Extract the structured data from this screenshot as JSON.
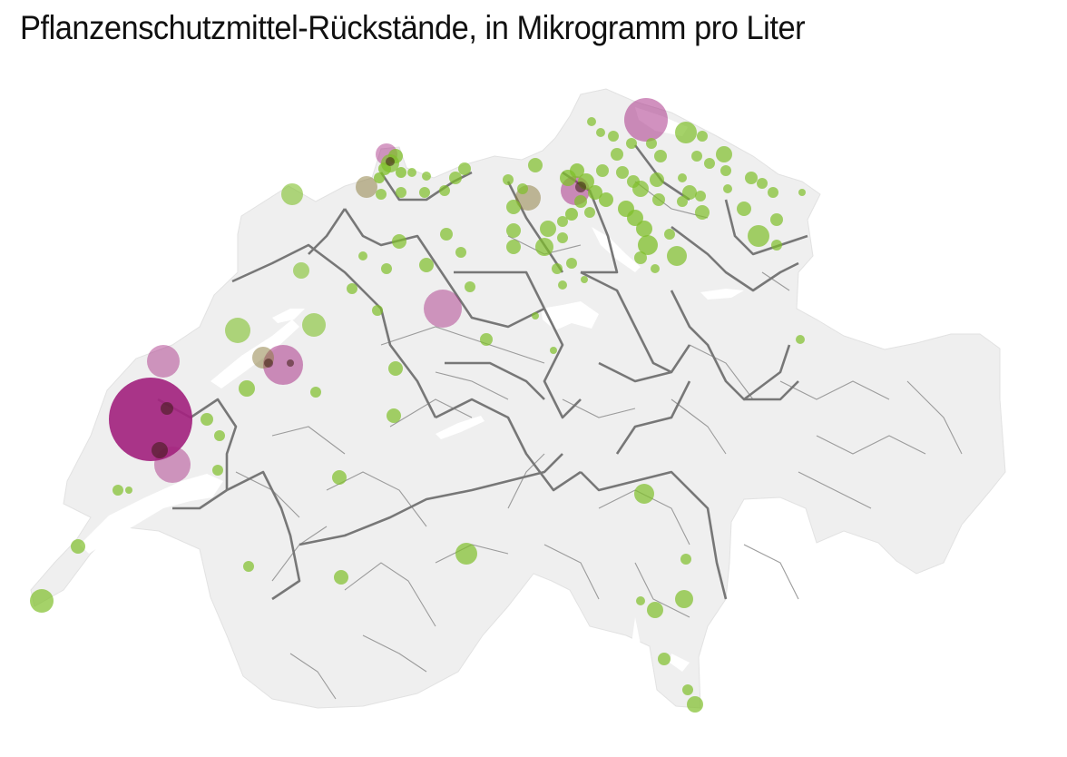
{
  "title": "Pflanzenschutzmittel-Rückstände, in Mikrogramm pro Liter",
  "colors": {
    "background": "#ffffff",
    "country_fill": "#efefef",
    "lake_fill": "#ffffff",
    "canton_border": "#777777",
    "district_border": "#9b9b9b",
    "low_residue": "#7fbf2a",
    "high_residue": "#a3247f"
  },
  "icons": [
    "marker-circle"
  ]
}
